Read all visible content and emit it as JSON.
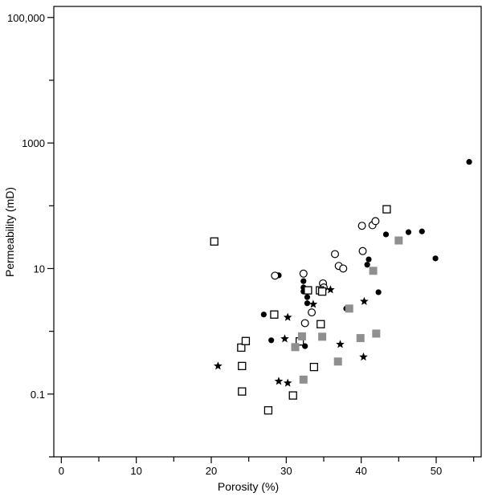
{
  "chart_data": {
    "type": "scatter",
    "title": "",
    "xlabel": "Porosity (%)",
    "ylabel": "Permeability (mD)",
    "xlim": [
      -1,
      56
    ],
    "ylim": [
      0.01,
      150000
    ],
    "yscale": "log",
    "grid": false,
    "legend": "none",
    "x_ticks": [
      {
        "value": 0,
        "label": "0"
      },
      {
        "value": 10,
        "label": "10"
      },
      {
        "value": 20,
        "label": "20"
      },
      {
        "value": 30,
        "label": "30"
      },
      {
        "value": 40,
        "label": "40"
      },
      {
        "value": 50,
        "label": "50"
      }
    ],
    "x_minor_ticks": [
      5,
      15,
      25,
      35,
      45,
      55
    ],
    "y_ticks": [
      {
        "value": 0.1,
        "label": "0.1"
      },
      {
        "value": 10,
        "label": "10"
      },
      {
        "value": 1000,
        "label": "1000"
      },
      {
        "value": 100000,
        "label": "100,000"
      }
    ],
    "y_minor_ticks": [
      0.01,
      1,
      100,
      10000
    ],
    "series": [
      {
        "marker": "filled-circle",
        "color": "#000000",
        "points": [
          [
            27.0,
            1.85
          ],
          [
            28.0,
            0.72
          ],
          [
            29.0,
            7.8
          ],
          [
            32.3,
            6.3
          ],
          [
            32.3,
            5.0
          ],
          [
            32.3,
            4.3
          ],
          [
            32.5,
            0.58
          ],
          [
            32.8,
            3.5
          ],
          [
            32.8,
            2.8
          ],
          [
            34.8,
            4.9
          ],
          [
            35.0,
            4.8
          ],
          [
            38.0,
            2.3
          ],
          [
            40.8,
            11.5
          ],
          [
            41.0,
            14.0
          ],
          [
            42.3,
            4.2
          ],
          [
            43.3,
            35.0
          ],
          [
            46.3,
            38.0
          ],
          [
            48.1,
            39.0
          ],
          [
            49.9,
            14.5
          ],
          [
            54.4,
            500.0
          ]
        ]
      },
      {
        "marker": "open-circle",
        "color": "#000000",
        "points": [
          [
            28.5,
            7.7
          ],
          [
            32.3,
            8.3
          ],
          [
            32.5,
            1.35
          ],
          [
            33.4,
            2.0
          ],
          [
            34.9,
            5.8
          ],
          [
            35.0,
            5.0
          ],
          [
            36.5,
            17.0
          ],
          [
            37.0,
            11.0
          ],
          [
            37.6,
            10.0
          ],
          [
            40.2,
            19.0
          ],
          [
            40.1,
            48.0
          ],
          [
            41.5,
            49.0
          ],
          [
            41.9,
            57.0
          ]
        ]
      },
      {
        "marker": "open-square",
        "color": "#000000",
        "points": [
          [
            20.4,
            27.0
          ],
          [
            24.0,
            0.55
          ],
          [
            24.1,
            0.28
          ],
          [
            24.1,
            0.11
          ],
          [
            24.6,
            0.7
          ],
          [
            27.6,
            0.055
          ],
          [
            28.4,
            1.85
          ],
          [
            30.9,
            0.095
          ],
          [
            31.8,
            0.69
          ],
          [
            32.9,
            4.5
          ],
          [
            33.7,
            0.27
          ],
          [
            34.5,
            4.5
          ],
          [
            34.6,
            1.3
          ],
          [
            34.8,
            4.3
          ],
          [
            43.4,
            88.0
          ]
        ]
      },
      {
        "marker": "gray-square",
        "color": "#8f8f8f",
        "points": [
          [
            31.2,
            0.56
          ],
          [
            32.1,
            0.83
          ],
          [
            32.3,
            0.17
          ],
          [
            34.8,
            0.82
          ],
          [
            36.9,
            0.33
          ],
          [
            38.4,
            2.3
          ],
          [
            39.9,
            0.78
          ],
          [
            41.6,
            9.2
          ],
          [
            42.0,
            0.92
          ],
          [
            45.0,
            28.0
          ]
        ]
      },
      {
        "marker": "star",
        "color": "#000000",
        "points": [
          [
            20.9,
            0.28
          ],
          [
            29.0,
            0.16
          ],
          [
            29.8,
            0.76
          ],
          [
            30.2,
            1.67
          ],
          [
            30.2,
            0.15
          ],
          [
            33.6,
            2.7
          ],
          [
            35.9,
            4.6
          ],
          [
            37.2,
            0.62
          ],
          [
            40.3,
            0.39
          ],
          [
            40.4,
            3.0
          ]
        ]
      }
    ]
  }
}
